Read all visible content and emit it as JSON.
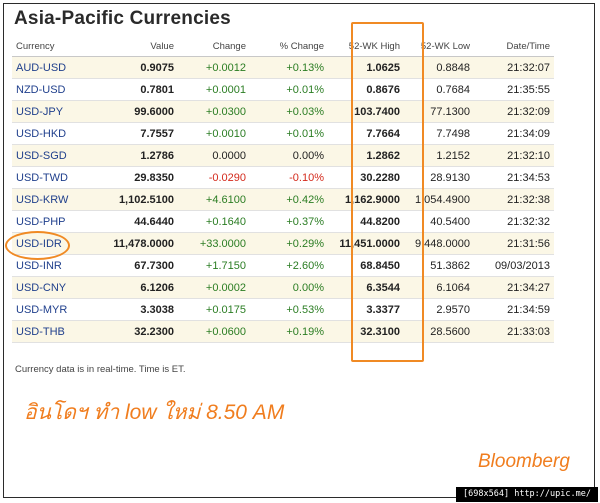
{
  "title": "Asia-Pacific Currencies",
  "columns": [
    "Currency",
    "Value",
    "Change",
    "% Change",
    "52-WK High",
    "52-WK Low",
    "Date/Time"
  ],
  "rows": [
    {
      "currency": "AUD-USD",
      "value": "0.9075",
      "change": "+0.0012",
      "pct": "+0.13%",
      "high": "1.0625",
      "low": "0.8848",
      "time": "21:32:07",
      "dir": "pos"
    },
    {
      "currency": "NZD-USD",
      "value": "0.7801",
      "change": "+0.0001",
      "pct": "+0.01%",
      "high": "0.8676",
      "low": "0.7684",
      "time": "21:35:55",
      "dir": "pos"
    },
    {
      "currency": "USD-JPY",
      "value": "99.6000",
      "change": "+0.0300",
      "pct": "+0.03%",
      "high": "103.7400",
      "low": "77.1300",
      "time": "21:32:09",
      "dir": "pos"
    },
    {
      "currency": "USD-HKD",
      "value": "7.7557",
      "change": "+0.0010",
      "pct": "+0.01%",
      "high": "7.7664",
      "low": "7.7498",
      "time": "21:34:09",
      "dir": "pos"
    },
    {
      "currency": "USD-SGD",
      "value": "1.2786",
      "change": "0.0000",
      "pct": "0.00%",
      "high": "1.2862",
      "low": "1.2152",
      "time": "21:32:10",
      "dir": "neu"
    },
    {
      "currency": "USD-TWD",
      "value": "29.8350",
      "change": "-0.0290",
      "pct": "-0.10%",
      "high": "30.2280",
      "low": "28.9130",
      "time": "21:34:53",
      "dir": "neg"
    },
    {
      "currency": "USD-KRW",
      "value": "1,102.5100",
      "change": "+4.6100",
      "pct": "+0.42%",
      "high": "1,162.9000",
      "low": "1,054.4900",
      "time": "21:32:38",
      "dir": "pos"
    },
    {
      "currency": "USD-PHP",
      "value": "44.6440",
      "change": "+0.1640",
      "pct": "+0.37%",
      "high": "44.8200",
      "low": "40.5400",
      "time": "21:32:32",
      "dir": "pos"
    },
    {
      "currency": "USD-IDR",
      "value": "11,478.0000",
      "change": "+33.0000",
      "pct": "+0.29%",
      "high": "11,451.0000",
      "low": "9,448.0000",
      "time": "21:31:56",
      "dir": "pos"
    },
    {
      "currency": "USD-INR",
      "value": "67.7300",
      "change": "+1.7150",
      "pct": "+2.60%",
      "high": "68.8450",
      "low": "51.3862",
      "time": "09/03/2013",
      "dir": "pos"
    },
    {
      "currency": "USD-CNY",
      "value": "6.1206",
      "change": "+0.0002",
      "pct": "0.00%",
      "high": "6.3544",
      "low": "6.1064",
      "time": "21:34:27",
      "dir": "pos"
    },
    {
      "currency": "USD-MYR",
      "value": "3.3038",
      "change": "+0.0175",
      "pct": "+0.53%",
      "high": "3.3377",
      "low": "2.9570",
      "time": "21:34:59",
      "dir": "pos"
    },
    {
      "currency": "USD-THB",
      "value": "32.2300",
      "change": "+0.0600",
      "pct": "+0.19%",
      "high": "32.3100",
      "low": "28.5600",
      "time": "21:33:03",
      "dir": "pos"
    }
  ],
  "note": "Currency data is in real-time. Time is ET.",
  "annotation": "อินโดฯ ทำ low ใหม่    8.50 AM",
  "brand": "Bloomberg",
  "footer": "[698x564] http://upic.me/",
  "colors": {
    "positive": "#2b7d23",
    "negative": "#d42a1c",
    "currency_link": "#1f3f8c",
    "highlight": "#f08a24",
    "row_band": "#fbf7e6"
  }
}
